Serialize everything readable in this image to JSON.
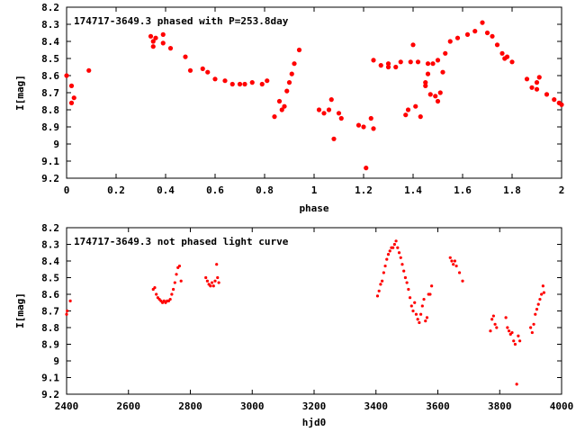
{
  "chart_data": [
    {
      "type": "scatter",
      "title": "174717-3649.3 phased with P=253.8day",
      "xlabel": "phase",
      "ylabel": "I[mag]",
      "xlim": [
        0,
        2
      ],
      "ylim": [
        9.2,
        8.2
      ],
      "y_inverted": true,
      "x_ticks": [
        "0",
        "0.2",
        "0.4",
        "0.6",
        "0.8",
        "1",
        "1.2",
        "1.4",
        "1.6",
        "1.8",
        "2"
      ],
      "y_ticks": [
        "8.2",
        "8.3",
        "8.4",
        "8.5",
        "8.6",
        "8.7",
        "8.8",
        "8.9",
        "9",
        "9.1",
        "9.2"
      ],
      "marker_color": "#ff0000",
      "grid": false,
      "series": [
        {
          "x": [
            0.0,
            0.02,
            0.02,
            0.03,
            0.09,
            0.34,
            0.35,
            0.35,
            0.36,
            0.39,
            0.39,
            0.42,
            0.48,
            0.5,
            0.55,
            0.57,
            0.6,
            0.64,
            0.67,
            0.7,
            0.72,
            0.75,
            0.79,
            0.81,
            0.84,
            0.86,
            0.87,
            0.88,
            0.89,
            0.9,
            0.91,
            0.92,
            0.94,
            1.02,
            1.04,
            1.06,
            1.07,
            1.08,
            1.1,
            1.11,
            1.18,
            1.2,
            1.21,
            1.23,
            1.24,
            1.24,
            1.27,
            1.3,
            1.33,
            1.35,
            1.37,
            1.38,
            1.39,
            1.4,
            1.41,
            1.42,
            1.43,
            1.45,
            1.46,
            1.47,
            1.48,
            1.49,
            1.5,
            1.51,
            1.52,
            1.53,
            1.55,
            1.58,
            1.62,
            1.65,
            1.68,
            1.7,
            1.72,
            1.74,
            1.76,
            1.78,
            1.8,
            1.86,
            1.88,
            1.9,
            1.91,
            1.94,
            1.97,
            1.99,
            2.0,
            1.3,
            1.45,
            1.5,
            1.46,
            1.77,
            1.9
          ],
          "y": [
            8.6,
            8.66,
            8.76,
            8.73,
            8.57,
            8.37,
            8.4,
            8.43,
            8.38,
            8.36,
            8.41,
            8.44,
            8.49,
            8.57,
            8.56,
            8.58,
            8.62,
            8.63,
            8.65,
            8.65,
            8.65,
            8.64,
            8.65,
            8.63,
            8.84,
            8.75,
            8.8,
            8.78,
            8.69,
            8.64,
            8.59,
            8.53,
            8.45,
            8.8,
            8.82,
            8.8,
            8.74,
            8.97,
            8.82,
            8.85,
            8.89,
            8.9,
            9.14,
            8.85,
            8.91,
            8.51,
            8.54,
            8.55,
            8.55,
            8.52,
            8.83,
            8.8,
            8.52,
            8.42,
            8.78,
            8.52,
            8.84,
            8.66,
            8.53,
            8.71,
            8.53,
            8.72,
            8.75,
            8.7,
            8.58,
            8.47,
            8.4,
            8.38,
            8.36,
            8.34,
            8.29,
            8.35,
            8.37,
            8.42,
            8.47,
            8.49,
            8.52,
            8.62,
            8.67,
            8.68,
            8.61,
            8.71,
            8.74,
            8.76,
            8.77,
            8.53,
            8.64,
            8.51,
            8.59,
            8.5,
            8.64
          ]
        }
      ]
    },
    {
      "type": "scatter",
      "title": "174717-3649.3 not phased light curve",
      "xlabel": "hjd0",
      "ylabel": "I[mag]",
      "xlim": [
        2400,
        4000
      ],
      "ylim": [
        9.2,
        8.2
      ],
      "y_inverted": true,
      "x_ticks": [
        "2400",
        "2600",
        "2800",
        "3000",
        "3200",
        "3400",
        "3600",
        "3800",
        "4000"
      ],
      "y_ticks": [
        "8.2",
        "8.3",
        "8.4",
        "8.5",
        "8.6",
        "8.7",
        "8.8",
        "8.9",
        "9",
        "9.1",
        "9.2"
      ],
      "marker_color": "#ff0000",
      "grid": false,
      "series": [
        {
          "x": [
            2400,
            2402,
            2412,
            2680,
            2685,
            2690,
            2695,
            2700,
            2705,
            2710,
            2715,
            2720,
            2725,
            2730,
            2735,
            2740,
            2745,
            2750,
            2755,
            2760,
            2765,
            2770,
            2850,
            2855,
            2860,
            2865,
            2870,
            2875,
            2880,
            2885,
            2888,
            2892,
            3405,
            3410,
            3415,
            3420,
            3425,
            3430,
            3435,
            3440,
            3445,
            3450,
            3455,
            3460,
            3465,
            3470,
            3475,
            3480,
            3485,
            3490,
            3495,
            3500,
            3505,
            3510,
            3515,
            3520,
            3525,
            3530,
            3535,
            3540,
            3545,
            3550,
            3555,
            3560,
            3565,
            3570,
            3575,
            3580,
            3640,
            3645,
            3650,
            3655,
            3660,
            3670,
            3680,
            3770,
            3775,
            3780,
            3785,
            3790,
            3820,
            3825,
            3830,
            3835,
            3840,
            3845,
            3850,
            3855,
            3860,
            3865,
            3900,
            3905,
            3910,
            3915,
            3920,
            3925,
            3930,
            3935,
            3940,
            3943
          ],
          "y": [
            8.72,
            8.7,
            8.64,
            8.57,
            8.56,
            8.6,
            8.62,
            8.63,
            8.64,
            8.65,
            8.64,
            8.65,
            8.64,
            8.64,
            8.63,
            8.6,
            8.57,
            8.53,
            8.48,
            8.44,
            8.43,
            8.52,
            8.5,
            8.52,
            8.54,
            8.55,
            8.53,
            8.55,
            8.52,
            8.42,
            8.5,
            8.53,
            8.61,
            8.58,
            8.54,
            8.52,
            8.47,
            8.43,
            8.39,
            8.36,
            8.34,
            8.32,
            8.32,
            8.3,
            8.28,
            8.32,
            8.35,
            8.38,
            8.42,
            8.46,
            8.5,
            8.53,
            8.57,
            8.62,
            8.67,
            8.7,
            8.65,
            8.72,
            8.75,
            8.77,
            8.72,
            8.67,
            8.63,
            8.76,
            8.74,
            8.6,
            8.6,
            8.55,
            8.38,
            8.4,
            8.42,
            8.4,
            8.43,
            8.47,
            8.52,
            8.82,
            8.75,
            8.73,
            8.78,
            8.8,
            8.74,
            8.8,
            8.82,
            8.84,
            8.83,
            8.88,
            8.9,
            9.14,
            8.85,
            8.88,
            8.8,
            8.83,
            8.78,
            8.72,
            8.69,
            8.66,
            8.63,
            8.6,
            8.55,
            8.59
          ]
        }
      ]
    }
  ]
}
